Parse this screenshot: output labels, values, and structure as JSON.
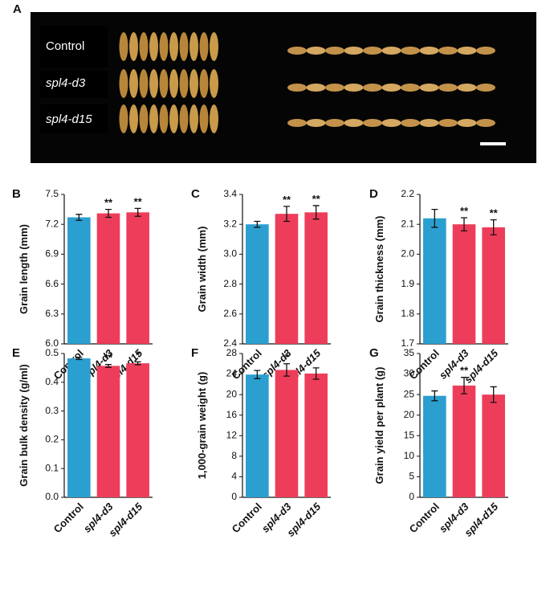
{
  "panel_a": {
    "panel": "A",
    "rows": [
      "Control",
      "spl4-d3",
      "spl4-d15"
    ]
  },
  "chart_data": [
    {
      "type": "bar",
      "panel": "B",
      "y_label": "Grain length (mm)",
      "categories": [
        "Control",
        "spl4-d3",
        "spl4-d15"
      ],
      "values": [
        7.27,
        7.31,
        7.32
      ],
      "errors": [
        0.03,
        0.04,
        0.04
      ],
      "annotations": [
        null,
        "**",
        "**"
      ],
      "colors": [
        "#2a9fd0",
        "#ee3d5a",
        "#ee3d5a"
      ],
      "ylim": [
        6.0,
        7.5
      ],
      "yticks": [
        {
          "value": 6.0,
          "label": "6.0"
        },
        6.3,
        6.6,
        6.9,
        7.2,
        7.5
      ]
    },
    {
      "type": "bar",
      "panel": "C",
      "y_label": "Grain width (mm)",
      "categories": [
        "Control",
        "spl4-d3",
        "spl4-d15"
      ],
      "values": [
        3.2,
        3.27,
        3.28
      ],
      "errors": [
        0.02,
        0.05,
        0.045
      ],
      "annotations": [
        null,
        "**",
        "**"
      ],
      "colors": [
        "#2a9fd0",
        "#ee3d5a",
        "#ee3d5a"
      ],
      "ylim": [
        2.4,
        3.4
      ],
      "yticks": [
        2.4,
        2.6,
        2.8,
        {
          "value": 3.0,
          "label": "3.0"
        },
        3.2,
        3.4
      ]
    },
    {
      "type": "bar",
      "panel": "D",
      "y_label": "Grain thickness (mm)",
      "categories": [
        "Control",
        "spl4-d3",
        "spl4-d15"
      ],
      "values": [
        2.12,
        2.1,
        2.09
      ],
      "errors": [
        0.03,
        0.022,
        0.025
      ],
      "annotations": [
        null,
        "**",
        "**"
      ],
      "colors": [
        "#2a9fd0",
        "#ee3d5a",
        "#ee3d5a"
      ],
      "ylim": [
        1.7,
        2.2
      ],
      "yticks": [
        1.7,
        1.8,
        1.9,
        {
          "value": 2.0,
          "label": "2.0"
        },
        2.1,
        2.2
      ]
    },
    {
      "type": "bar",
      "panel": "E",
      "y_label": "Grain bulk density (g/ml)",
      "categories": [
        "Control",
        "spl4-d3",
        "spl4-d15"
      ],
      "values": [
        0.483,
        0.457,
        0.466
      ],
      "errors": [
        0.004,
        0.005,
        0.005
      ],
      "annotations": [
        null,
        "**",
        "*"
      ],
      "colors": [
        "#2a9fd0",
        "#ee3d5a",
        "#ee3d5a"
      ],
      "ylim": [
        0,
        0.5
      ],
      "yticks": [
        {
          "value": 0,
          "label": "0.0"
        },
        0.1,
        0.2,
        0.3,
        0.4,
        0.5
      ]
    },
    {
      "type": "bar",
      "panel": "F",
      "y_label": "1,000-grain weight (g)",
      "categories": [
        "Control",
        "spl4-d3",
        "spl4-d15"
      ],
      "values": [
        23.9,
        24.8,
        24.1
      ],
      "errors": [
        0.8,
        1.2,
        1.1
      ],
      "annotations": [
        null,
        "*",
        null
      ],
      "colors": [
        "#2a9fd0",
        "#ee3d5a",
        "#ee3d5a"
      ],
      "ylim": [
        0,
        28
      ],
      "yticks": [
        0,
        4,
        8,
        12,
        16,
        20,
        24,
        28
      ]
    },
    {
      "type": "bar",
      "panel": "G",
      "y_label": "Grain yield per plant (g)",
      "categories": [
        "Control",
        "spl4-d3",
        "spl4-d15"
      ],
      "values": [
        24.7,
        27.2,
        25.0
      ],
      "errors": [
        1.2,
        2.0,
        1.9
      ],
      "annotations": [
        null,
        "**",
        null
      ],
      "colors": [
        "#2a9fd0",
        "#ee3d5a",
        "#ee3d5a"
      ],
      "ylim": [
        0,
        35
      ],
      "yticks": [
        0,
        5,
        10,
        15,
        20,
        25,
        30,
        35
      ]
    }
  ]
}
